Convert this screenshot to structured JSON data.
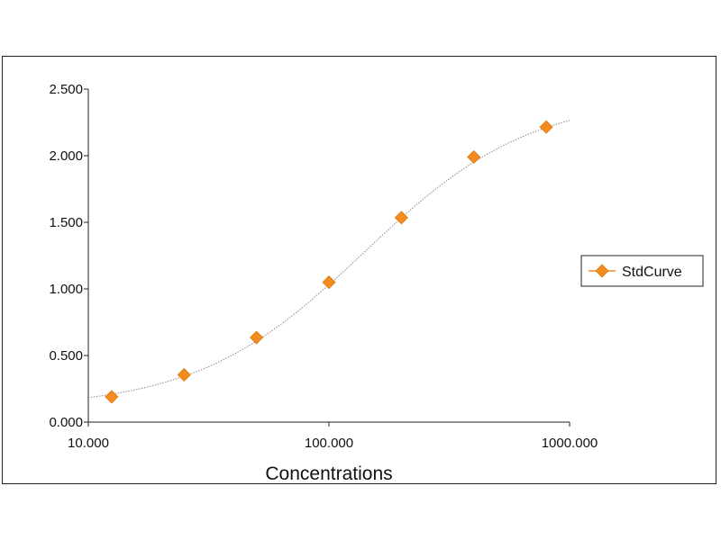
{
  "chart_data": {
    "type": "scatter",
    "title": "",
    "xlabel": "Concentrations",
    "ylabel": "",
    "x_scale": "log",
    "xlim": [
      10,
      1000
    ],
    "ylim": [
      0,
      2.5
    ],
    "x_ticks": [
      10,
      100,
      1000
    ],
    "x_tick_labels": [
      "10.000",
      "100.000",
      "1000.000"
    ],
    "y_ticks": [
      0,
      0.5,
      1.0,
      1.5,
      2.0,
      2.5
    ],
    "y_tick_labels": [
      "0.000",
      "0.500",
      "1.000",
      "1.500",
      "2.000",
      "2.500"
    ],
    "grid": false,
    "legend_position": "right",
    "fit_line": "sigmoidal (4-parameter logistic), thin gray dotted",
    "series": [
      {
        "name": "StdCurve",
        "marker": "diamond",
        "color": "#F28C1E",
        "x": [
          12.5,
          25,
          50,
          100,
          200,
          400,
          800
        ],
        "y": [
          0.19,
          0.355,
          0.635,
          1.05,
          1.535,
          1.99,
          2.215
        ]
      }
    ]
  }
}
